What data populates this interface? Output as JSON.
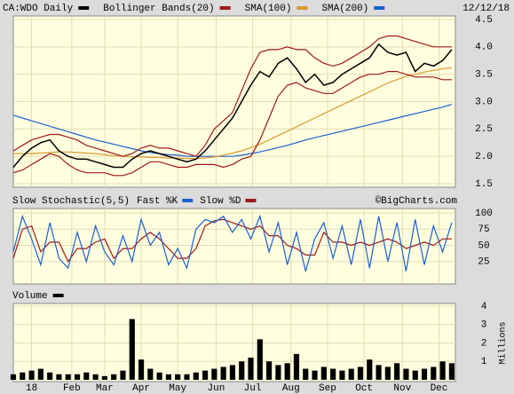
{
  "chart_data": [
    {
      "type": "line",
      "title": "12/12/18",
      "x": [
        0,
        5,
        10,
        15,
        20,
        25,
        30,
        35,
        40,
        45,
        50,
        55,
        60,
        65,
        70,
        75,
        80,
        85,
        90,
        95,
        100,
        105,
        110,
        115,
        120,
        125,
        130,
        135,
        140,
        145,
        150,
        155,
        160,
        165,
        170,
        175,
        180,
        185,
        190,
        195,
        200,
        205,
        210,
        215,
        220,
        225,
        230,
        235,
        240
      ],
      "xlim": [
        0,
        242
      ],
      "ylim": [
        1.5,
        4.5
      ],
      "yticks": [
        {
          "value": 1.5,
          "label": "1.5"
        },
        {
          "value": 2.0,
          "label": "2.0"
        },
        {
          "value": 2.5,
          "label": "2.5"
        },
        {
          "value": 3.0,
          "label": "3.0"
        },
        {
          "value": 3.5,
          "label": "3.5"
        },
        {
          "value": 4.0,
          "label": "4.0"
        },
        {
          "value": 4.5,
          "label": "4.5"
        }
      ],
      "grid": true,
      "series": [
        {
          "name": "CA:WDO Daily",
          "color": "#000000",
          "values": [
            1.8,
            2.0,
            2.15,
            2.25,
            2.3,
            2.1,
            2.0,
            1.95,
            1.95,
            1.9,
            1.85,
            1.8,
            1.8,
            1.95,
            2.05,
            2.1,
            2.05,
            2.0,
            1.95,
            1.9,
            1.95,
            2.1,
            2.3,
            2.5,
            2.7,
            3.0,
            3.3,
            3.55,
            3.45,
            3.7,
            3.8,
            3.6,
            3.35,
            3.5,
            3.3,
            3.35,
            3.5,
            3.6,
            3.7,
            3.8,
            4.05,
            3.9,
            3.85,
            3.9,
            3.55,
            3.7,
            3.65,
            3.75,
            3.95
          ]
        },
        {
          "name": "Bollinger Bands(20)",
          "color": "#a01818",
          "values": [
            2.1,
            2.2,
            2.3,
            2.35,
            2.4,
            2.4,
            2.35,
            2.3,
            2.2,
            2.15,
            2.1,
            2.05,
            2.0,
            2.05,
            2.15,
            2.2,
            2.15,
            2.15,
            2.1,
            2.05,
            2.0,
            2.2,
            2.5,
            2.65,
            2.8,
            3.2,
            3.6,
            3.9,
            3.95,
            3.95,
            4.0,
            3.95,
            3.95,
            3.8,
            3.7,
            3.65,
            3.7,
            3.8,
            3.9,
            4.0,
            4.15,
            4.2,
            4.2,
            4.15,
            4.1,
            4.05,
            4.0,
            4.0,
            4.0
          ],
          "lower": [
            1.7,
            1.75,
            1.85,
            1.95,
            2.05,
            2.0,
            1.85,
            1.75,
            1.7,
            1.7,
            1.7,
            1.65,
            1.65,
            1.7,
            1.8,
            1.9,
            1.9,
            1.85,
            1.8,
            1.8,
            1.85,
            1.85,
            1.85,
            1.8,
            1.85,
            1.95,
            2.0,
            2.3,
            2.7,
            3.1,
            3.3,
            3.35,
            3.25,
            3.2,
            3.15,
            3.15,
            3.25,
            3.35,
            3.45,
            3.5,
            3.5,
            3.55,
            3.55,
            3.5,
            3.45,
            3.45,
            3.45,
            3.4,
            3.4
          ]
        },
        {
          "name": "SMA(100)",
          "color": "#d89a30",
          "values": [
            2.05,
            2.05,
            2.05,
            2.06,
            2.07,
            2.08,
            2.08,
            2.07,
            2.06,
            2.05,
            2.03,
            2.01,
            2.0,
            1.99,
            1.99,
            1.98,
            1.98,
            1.97,
            1.97,
            1.96,
            1.96,
            1.97,
            1.99,
            2.02,
            2.06,
            2.1,
            2.16,
            2.22,
            2.3,
            2.38,
            2.46,
            2.54,
            2.62,
            2.7,
            2.78,
            2.86,
            2.94,
            3.02,
            3.1,
            3.18,
            3.26,
            3.34,
            3.4,
            3.46,
            3.5,
            3.54,
            3.57,
            3.6,
            3.62
          ]
        },
        {
          "name": "SMA(200)",
          "color": "#1a5fd0",
          "values": [
            2.75,
            2.7,
            2.65,
            2.6,
            2.55,
            2.5,
            2.45,
            2.4,
            2.35,
            2.3,
            2.26,
            2.22,
            2.18,
            2.14,
            2.1,
            2.07,
            2.05,
            2.03,
            2.02,
            2.0,
            2.0,
            2.0,
            2.0,
            2.0,
            2.0,
            2.02,
            2.05,
            2.08,
            2.12,
            2.16,
            2.2,
            2.25,
            2.3,
            2.34,
            2.38,
            2.42,
            2.46,
            2.5,
            2.54,
            2.58,
            2.62,
            2.66,
            2.7,
            2.74,
            2.78,
            2.82,
            2.86,
            2.9,
            2.95
          ]
        }
      ]
    },
    {
      "type": "line",
      "title": "Slow Stochastic(5,5)",
      "credit": "©BigCharts.com",
      "x": [
        0,
        5,
        10,
        15,
        20,
        25,
        30,
        35,
        40,
        45,
        50,
        55,
        60,
        65,
        70,
        75,
        80,
        85,
        90,
        95,
        100,
        105,
        110,
        115,
        120,
        125,
        130,
        135,
        140,
        145,
        150,
        155,
        160,
        165,
        170,
        175,
        180,
        185,
        190,
        195,
        200,
        205,
        210,
        215,
        220,
        225,
        230,
        235,
        240
      ],
      "xlim": [
        0,
        242
      ],
      "ylim": [
        0,
        100
      ],
      "yticks": [
        25,
        50,
        75,
        100
      ],
      "grid": true,
      "series": [
        {
          "name": "Fast %K",
          "color": "#1a5fd0",
          "values": [
            40,
            95,
            60,
            20,
            85,
            30,
            15,
            70,
            25,
            80,
            40,
            20,
            65,
            25,
            90,
            50,
            70,
            20,
            45,
            15,
            75,
            90,
            85,
            95,
            70,
            90,
            60,
            95,
            40,
            85,
            20,
            70,
            10,
            60,
            85,
            30,
            80,
            20,
            90,
            15,
            95,
            25,
            85,
            10,
            90,
            20,
            80,
            40,
            85
          ]
        },
        {
          "name": "Slow %D",
          "color": "#a01818",
          "values": [
            30,
            75,
            80,
            40,
            55,
            55,
            25,
            45,
            45,
            55,
            60,
            30,
            45,
            45,
            60,
            70,
            60,
            45,
            30,
            30,
            45,
            80,
            88,
            90,
            85,
            80,
            75,
            80,
            65,
            65,
            50,
            45,
            35,
            35,
            70,
            55,
            55,
            50,
            55,
            50,
            55,
            60,
            55,
            45,
            50,
            55,
            50,
            60,
            60
          ]
        }
      ]
    },
    {
      "type": "bar",
      "title": "Volume",
      "ylabel": "Millions",
      "color": "#000000",
      "x": [
        0,
        5,
        10,
        15,
        20,
        25,
        30,
        35,
        40,
        45,
        50,
        55,
        60,
        65,
        70,
        75,
        80,
        85,
        90,
        95,
        100,
        105,
        110,
        115,
        120,
        125,
        130,
        135,
        140,
        145,
        150,
        155,
        160,
        165,
        170,
        175,
        180,
        185,
        190,
        195,
        200,
        205,
        210,
        215,
        220,
        225,
        230,
        235,
        240
      ],
      "values": [
        0.3,
        0.4,
        0.5,
        0.6,
        0.4,
        0.3,
        0.3,
        0.3,
        0.4,
        0.3,
        0.2,
        0.3,
        0.5,
        3.3,
        1.1,
        0.6,
        0.4,
        0.3,
        0.3,
        0.3,
        0.4,
        0.5,
        0.6,
        0.7,
        0.8,
        1.0,
        1.2,
        2.2,
        1.0,
        0.8,
        0.9,
        1.4,
        0.6,
        0.5,
        0.7,
        0.6,
        0.5,
        0.6,
        0.7,
        1.1,
        0.8,
        0.7,
        0.9,
        0.6,
        0.5,
        0.6,
        0.7,
        1.0,
        0.9
      ],
      "xlim": [
        0,
        242
      ],
      "ylim": [
        0,
        4
      ],
      "yticks": [
        1,
        2,
        3,
        4
      ],
      "grid": true,
      "xticks": [
        {
          "value": 10,
          "label": "18"
        },
        {
          "value": 32,
          "label": "Feb"
        },
        {
          "value": 50,
          "label": "Mar"
        },
        {
          "value": 70,
          "label": "Apr"
        },
        {
          "value": 90,
          "label": "May"
        },
        {
          "value": 111,
          "label": "Jun"
        },
        {
          "value": 131,
          "label": "Jul"
        },
        {
          "value": 152,
          "label": "Aug"
        },
        {
          "value": 172,
          "label": "Sep"
        },
        {
          "value": 192,
          "label": "Oct"
        },
        {
          "value": 213,
          "label": "Nov"
        },
        {
          "value": 233,
          "label": "Dec"
        }
      ]
    }
  ]
}
